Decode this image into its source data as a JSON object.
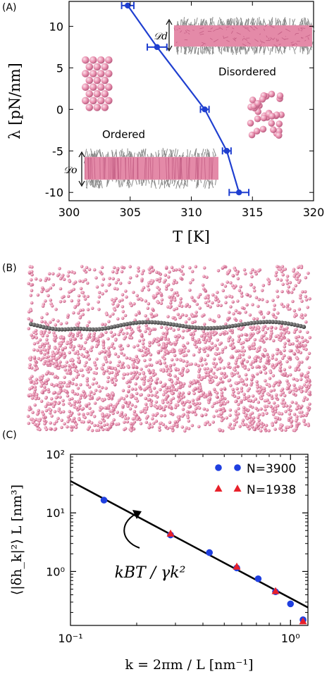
{
  "panels": {
    "a": {
      "label": "(A)"
    },
    "b": {
      "label": "(B)"
    },
    "c": {
      "label": "(C)"
    }
  },
  "chart_data": [
    {
      "type": "line",
      "panel": "(A)",
      "xlabel": "T [K]",
      "ylabel": "λ [pN/nm]",
      "xlim": [
        300,
        320
      ],
      "ylim": [
        -11,
        13
      ],
      "xticks": [
        300,
        305,
        310,
        315,
        320
      ],
      "yticks": [
        -10,
        -5,
        0,
        5,
        10
      ],
      "series": [
        {
          "color": "#1f3fd0",
          "x": [
            304.8,
            307.2,
            311.1,
            312.9,
            313.9
          ],
          "y": [
            12.5,
            7.5,
            0,
            -5,
            -10
          ],
          "xerr": [
            0.5,
            0.8,
            0.35,
            0.35,
            0.8
          ]
        }
      ],
      "annotations": {
        "disordered": "Disordered",
        "ordered": "Ordered",
        "d_disordered": "𝒟d",
        "d_ordered": "𝒟o"
      },
      "grid": false
    },
    {
      "type": "scatter",
      "panel": "(C)",
      "xlabel": "k = 2πm / L [nm⁻¹]",
      "ylabel": "⟨|δh_k|²⟩ L [nm³]",
      "xscale": "log",
      "yscale": "log",
      "xlim": [
        0.1,
        1.2
      ],
      "ylim": [
        0.12,
        100
      ],
      "xtick_labels": [
        "10⁻¹",
        "10⁰"
      ],
      "ytick_labels": [
        "10⁰",
        "10¹",
        "10²"
      ],
      "series": [
        {
          "name": "N=3900",
          "marker": "circle",
          "color": "#1f3fe0",
          "x": [
            0.142,
            0.285,
            0.428,
            0.57,
            0.713,
            0.855,
            1.0,
            1.14
          ],
          "y": [
            16.5,
            4.2,
            2.1,
            1.15,
            0.75,
            0.45,
            0.28,
            0.15
          ]
        },
        {
          "name": "N=1938",
          "marker": "triangle",
          "color": "#e8202a",
          "x": [
            0.285,
            0.57,
            0.855,
            1.14
          ],
          "y": [
            4.4,
            1.2,
            0.46,
            0.14
          ]
        }
      ],
      "fit_line": {
        "x": [
          0.1,
          1.2
        ],
        "y": [
          35,
          0.243
        ],
        "label": "kBT / γk²"
      },
      "legend_position": "top-right"
    }
  ]
}
